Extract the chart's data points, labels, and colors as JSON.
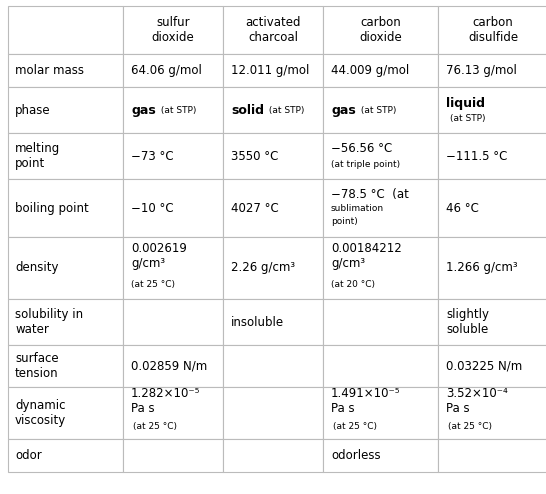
{
  "col_headers": [
    "",
    "sulfur\ndioxide",
    "activated\ncharcoal",
    "carbon\ndioxide",
    "carbon\ndisulfide"
  ],
  "row_labels": [
    "molar mass",
    "phase",
    "melting\npoint",
    "boiling point",
    "density",
    "solubility in\nwater",
    "surface\ntension",
    "dynamic\nviscosity",
    "odor"
  ],
  "bg_color": "#ffffff",
  "line_color": "#bbbbbb",
  "text_color": "#000000",
  "fig_w": 5.46,
  "fig_h": 4.94,
  "dpi": 100
}
